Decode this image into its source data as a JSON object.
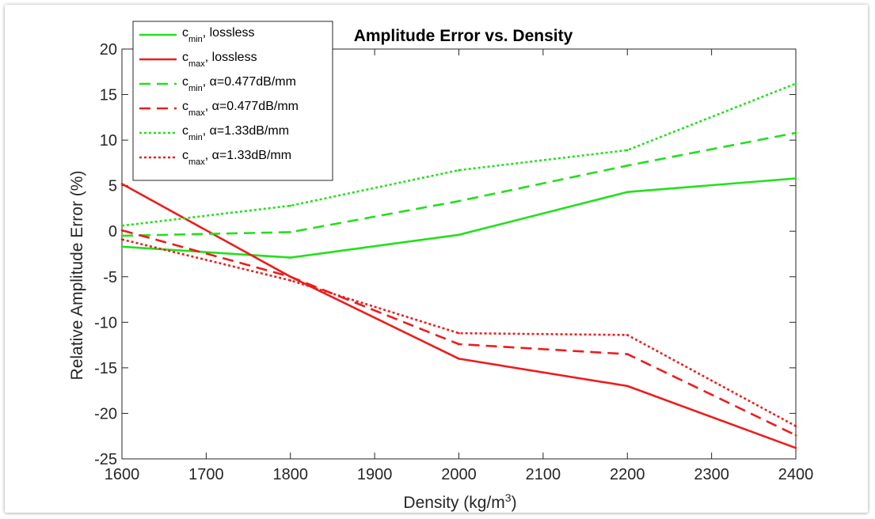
{
  "chart_data": {
    "type": "line",
    "title": "Amplitude Error vs. Density",
    "xlabel": "Density (kg/m",
    "xlabel_sup": "3",
    "xlabel_end": ")",
    "ylabel": "Relative Amplitude Error (%)",
    "xlim": [
      1600,
      2400
    ],
    "ylim": [
      -25,
      20
    ],
    "xticks": [
      "1600",
      "1700",
      "1800",
      "1900",
      "2000",
      "2100",
      "2200",
      "2300",
      "2400"
    ],
    "yticks": [
      "20",
      "15",
      "10",
      "5",
      "0",
      "-5",
      "-10",
      "-15",
      "-20",
      "-25"
    ],
    "x": [
      1600,
      1800,
      2000,
      2200,
      2400
    ],
    "grid": false,
    "legend_placement": "top-left",
    "series": [
      {
        "key": "cmin-lossless",
        "name_main": "c",
        "name_sub": "min",
        "name_rest": ", lossless",
        "color": "#22e01c",
        "style": "solid",
        "values": [
          -1.7,
          -2.9,
          -0.4,
          4.3,
          5.8
        ]
      },
      {
        "key": "cmax-lossless",
        "name_main": "c",
        "name_sub": "max",
        "name_rest": ", lossless",
        "color": "#ee1c1c",
        "style": "solid",
        "values": [
          5.2,
          -5.0,
          -14.0,
          -17.0,
          -23.8
        ]
      },
      {
        "key": "cmin-0477",
        "name_main": "c",
        "name_sub": "min",
        "name_rest": ", α=0.477dB/mm",
        "color": "#22e01c",
        "style": "dashed",
        "values": [
          -0.5,
          -0.1,
          3.3,
          7.2,
          10.8
        ]
      },
      {
        "key": "cmax-0477",
        "name_main": "c",
        "name_sub": "max",
        "name_rest": ", α=0.477dB/mm",
        "color": "#ee1c1c",
        "style": "dashed",
        "values": [
          0.1,
          -5.0,
          -12.4,
          -13.5,
          -22.4
        ]
      },
      {
        "key": "cmin-133",
        "name_main": "c",
        "name_sub": "min",
        "name_rest": ", α=1.33dB/mm",
        "color": "#22e01c",
        "style": "dotted",
        "values": [
          0.6,
          2.8,
          6.7,
          8.9,
          16.2
        ]
      },
      {
        "key": "cmax-133",
        "name_main": "c",
        "name_sub": "max",
        "name_rest": ", α=1.33dB/mm",
        "color": "#ee1c1c",
        "style": "dotted",
        "values": [
          -0.9,
          -5.4,
          -11.2,
          -11.4,
          -21.4
        ]
      }
    ]
  }
}
